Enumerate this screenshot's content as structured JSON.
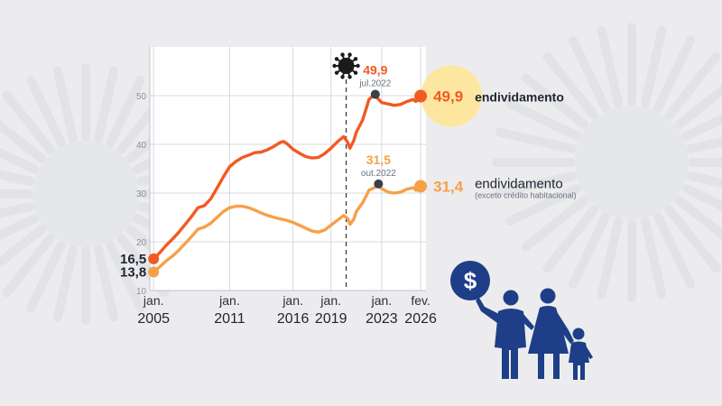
{
  "chart_data": {
    "type": "line",
    "x_tick_labels": [
      {
        "month": "jan.",
        "year": "2005",
        "x": 2005.0
      },
      {
        "month": "jan.",
        "year": "2011",
        "x": 2011.0
      },
      {
        "month": "jan.",
        "year": "2016",
        "x": 2016.0
      },
      {
        "month": "jan.",
        "year": "2019",
        "x": 2019.0
      },
      {
        "month": "jan.",
        "year": "2023",
        "x": 2023.0
      },
      {
        "month": "fev.",
        "year": "2026",
        "x": 2026.08
      }
    ],
    "y_ticks": [
      10,
      20,
      30,
      40,
      50
    ],
    "ylim": [
      10,
      60
    ],
    "xlim": [
      2004.7,
      2026.5
    ],
    "event_marker": {
      "x": 2020.2,
      "icon": "virus-icon"
    },
    "series": [
      {
        "name": "endividamento",
        "color": "#f15a22",
        "start_label": "16,5",
        "end_label": "49,9",
        "peak": {
          "value": "49,9",
          "date": "jul.2022",
          "x": 2022.5,
          "y": 49.9
        },
        "points": [
          [
            2005.0,
            16.5
          ],
          [
            2005.5,
            17.8
          ],
          [
            2006.0,
            19.3
          ],
          [
            2006.5,
            20.6
          ],
          [
            2007.0,
            22.0
          ],
          [
            2007.5,
            23.6
          ],
          [
            2008.0,
            25.2
          ],
          [
            2008.5,
            27.0
          ],
          [
            2009.0,
            27.4
          ],
          [
            2009.5,
            28.8
          ],
          [
            2010.0,
            31.0
          ],
          [
            2010.5,
            33.3
          ],
          [
            2011.0,
            35.4
          ],
          [
            2011.5,
            36.5
          ],
          [
            2012.0,
            37.3
          ],
          [
            2012.5,
            37.8
          ],
          [
            2013.0,
            38.3
          ],
          [
            2013.5,
            38.4
          ],
          [
            2014.0,
            38.9
          ],
          [
            2014.5,
            39.6
          ],
          [
            2015.0,
            40.4
          ],
          [
            2015.25,
            40.6
          ],
          [
            2015.5,
            40.2
          ],
          [
            2016.0,
            39.0
          ],
          [
            2016.5,
            38.2
          ],
          [
            2017.0,
            37.5
          ],
          [
            2017.5,
            37.2
          ],
          [
            2018.0,
            37.3
          ],
          [
            2018.5,
            38.1
          ],
          [
            2019.0,
            39.2
          ],
          [
            2019.5,
            40.5
          ],
          [
            2020.0,
            41.6
          ],
          [
            2020.3,
            40.5
          ],
          [
            2020.5,
            39.2
          ],
          [
            2020.8,
            40.8
          ],
          [
            2021.0,
            42.5
          ],
          [
            2021.5,
            45.0
          ],
          [
            2021.8,
            47.5
          ],
          [
            2022.0,
            49.2
          ],
          [
            2022.3,
            49.9
          ],
          [
            2022.5,
            49.9
          ],
          [
            2023.0,
            48.6
          ],
          [
            2023.5,
            48.3
          ],
          [
            2024.0,
            48.0
          ],
          [
            2024.5,
            48.2
          ],
          [
            2025.0,
            48.8
          ],
          [
            2025.5,
            49.2
          ],
          [
            2025.7,
            48.8
          ],
          [
            2026.08,
            49.9
          ]
        ]
      },
      {
        "name": "endividamento",
        "subtitle": "(exceto crédito habitacional)",
        "color": "#f7a04a",
        "start_label": "13,8",
        "end_label": "31,4",
        "peak": {
          "value": "31,5",
          "date": "out.2022",
          "x": 2022.75,
          "y": 31.5
        },
        "points": [
          [
            2005.0,
            13.8
          ],
          [
            2005.5,
            14.9
          ],
          [
            2006.0,
            16.1
          ],
          [
            2006.5,
            17.1
          ],
          [
            2007.0,
            18.3
          ],
          [
            2007.5,
            19.7
          ],
          [
            2008.0,
            21.1
          ],
          [
            2008.5,
            22.6
          ],
          [
            2009.0,
            23.0
          ],
          [
            2009.5,
            23.8
          ],
          [
            2010.0,
            25.0
          ],
          [
            2010.5,
            26.2
          ],
          [
            2011.0,
            27.0
          ],
          [
            2011.5,
            27.3
          ],
          [
            2012.0,
            27.3
          ],
          [
            2012.5,
            27.0
          ],
          [
            2013.0,
            26.5
          ],
          [
            2013.5,
            25.9
          ],
          [
            2014.0,
            25.4
          ],
          [
            2014.5,
            25.0
          ],
          [
            2015.0,
            24.7
          ],
          [
            2015.5,
            24.4
          ],
          [
            2016.0,
            24.0
          ],
          [
            2016.5,
            23.4
          ],
          [
            2017.0,
            22.8
          ],
          [
            2017.5,
            22.2
          ],
          [
            2018.0,
            22.0
          ],
          [
            2018.5,
            22.4
          ],
          [
            2019.0,
            23.4
          ],
          [
            2019.5,
            24.4
          ],
          [
            2020.0,
            25.4
          ],
          [
            2020.3,
            24.8
          ],
          [
            2020.5,
            23.6
          ],
          [
            2020.8,
            24.6
          ],
          [
            2021.0,
            26.2
          ],
          [
            2021.5,
            28.0
          ],
          [
            2021.8,
            29.5
          ],
          [
            2022.0,
            30.6
          ],
          [
            2022.5,
            31.2
          ],
          [
            2022.75,
            31.5
          ],
          [
            2023.0,
            30.9
          ],
          [
            2023.5,
            30.2
          ],
          [
            2024.0,
            30.0
          ],
          [
            2024.5,
            30.2
          ],
          [
            2025.0,
            30.8
          ],
          [
            2025.5,
            31.1
          ],
          [
            2025.7,
            30.6
          ],
          [
            2026.08,
            31.4
          ]
        ]
      }
    ]
  },
  "icons": {
    "virus": "virus-icon",
    "family": "family-icon",
    "dollar": "dollar-coin-icon",
    "dollar_symbol": "$"
  },
  "colors": {
    "background": "#ececee",
    "primary_line": "#f15a22",
    "secondary_line": "#f7a04a",
    "highlight": "#fde7a0",
    "family": "#1e3f87"
  }
}
